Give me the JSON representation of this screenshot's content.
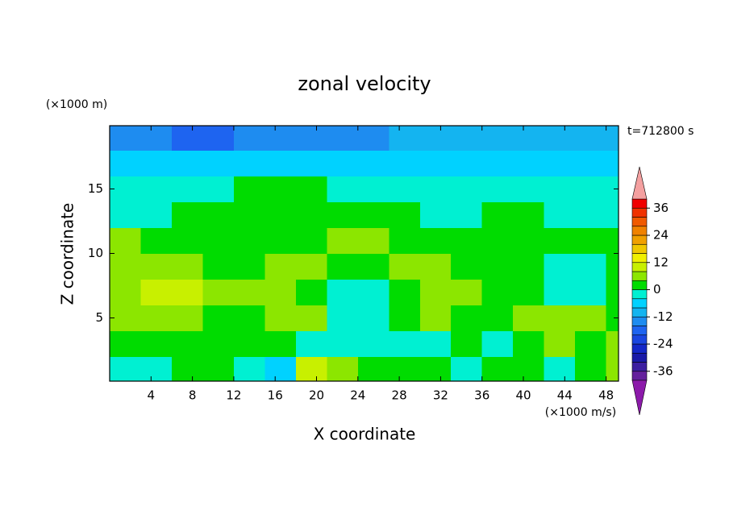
{
  "chart_data": {
    "type": "contour",
    "title": "zonal velocity",
    "y_unit_label": "(×1000 m)",
    "x_unit_label": "(×1000 m/s)",
    "time_label": "t=712800 s",
    "xlabel": "X coordinate",
    "ylabel": "Z coordinate",
    "xlim": [
      0,
      49.2
    ],
    "ylim": [
      0.1,
      19.9
    ],
    "xticks": [
      4,
      8,
      12,
      16,
      20,
      24,
      28,
      32,
      36,
      40,
      44,
      48
    ],
    "yticks": [
      5,
      10,
      15
    ],
    "x": [
      1.5,
      4.5,
      7.5,
      10.5,
      13.5,
      16.5,
      19.5,
      22.5,
      25.5,
      28.5,
      31.5,
      34.5,
      37.5,
      40.5,
      43.5,
      46.5,
      49.5
    ],
    "y": [
      1,
      3,
      5,
      7,
      9,
      11,
      13,
      15,
      17,
      19
    ],
    "z": [
      [
        -2,
        -2,
        2,
        2,
        -2,
        -6,
        10,
        6,
        2,
        2,
        2,
        -2,
        2,
        2,
        -2,
        2,
        6
      ],
      [
        2,
        2,
        2,
        2,
        2,
        2,
        -2,
        -2,
        -2,
        -2,
        -2,
        2,
        -2,
        2,
        6,
        2,
        6
      ],
      [
        6,
        6,
        6,
        2,
        2,
        6,
        6,
        -2,
        -2,
        2,
        6,
        2,
        2,
        6,
        6,
        6,
        2
      ],
      [
        6,
        10,
        10,
        6,
        6,
        6,
        2,
        -2,
        -2,
        2,
        6,
        6,
        2,
        2,
        -2,
        -2,
        2
      ],
      [
        6,
        6,
        6,
        2,
        2,
        6,
        6,
        2,
        2,
        6,
        6,
        2,
        2,
        2,
        -2,
        -2,
        2
      ],
      [
        6,
        2,
        2,
        2,
        2,
        2,
        2,
        6,
        6,
        2,
        2,
        2,
        2,
        2,
        2,
        2,
        2
      ],
      [
        -2,
        -2,
        2,
        2,
        2,
        2,
        2,
        2,
        2,
        2,
        -2,
        -2,
        2,
        2,
        -2,
        -2,
        -2
      ],
      [
        -2,
        -2,
        -2,
        -2,
        2,
        2,
        2,
        -2,
        -2,
        -2,
        -2,
        -2,
        -2,
        -2,
        -2,
        -2,
        -2
      ],
      [
        -6,
        -6,
        -6,
        -6,
        -6,
        -6,
        -6,
        -6,
        -6,
        -6,
        -6,
        -6,
        -6,
        -6,
        -6,
        -6,
        -6
      ],
      [
        -14,
        -16,
        -20,
        -18,
        -14,
        -14,
        -14,
        -14,
        -14,
        -12,
        -10,
        -10,
        -10,
        -10,
        -10,
        -10,
        -10
      ]
    ],
    "levels": [
      -40,
      -36,
      -32,
      -28,
      -24,
      -20,
      -16,
      -12,
      -8,
      -4,
      0,
      4,
      8,
      12,
      16,
      20,
      24,
      28,
      32,
      36,
      40
    ],
    "colors": [
      "#64209c",
      "#3c1ea0",
      "#1a1aa8",
      "#1428c8",
      "#1a46e0",
      "#1e64f0",
      "#1e8cf0",
      "#14b4f0",
      "#00d2ff",
      "#00f0d2",
      "#00dc00",
      "#8ce600",
      "#c8f000",
      "#f0f000",
      "#f0c800",
      "#f0a000",
      "#f08200",
      "#f05a00",
      "#f03200",
      "#f00000"
    ],
    "extend_colors": {
      "low": "#8c1aaa",
      "high": "#f4a0a0"
    },
    "colorbar_ticks": [
      -36,
      -24,
      -12,
      0,
      12,
      24,
      36
    ]
  }
}
